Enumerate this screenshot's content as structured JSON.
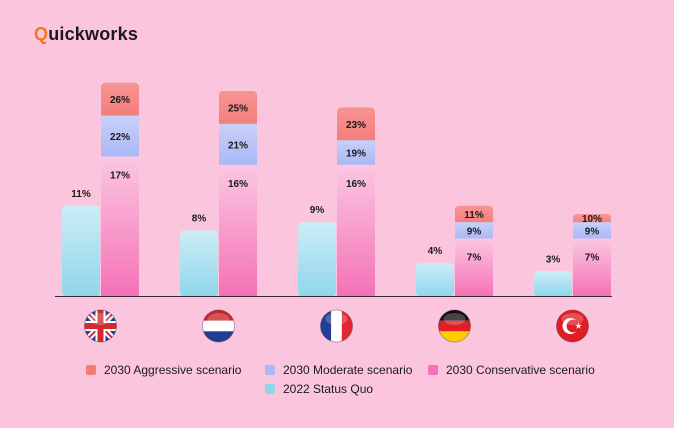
{
  "brand": {
    "prefix": "Q",
    "rest": "uickworks"
  },
  "colors": {
    "aggressive": "#f47b78",
    "moderate": "#aab8f5",
    "conservative": "#f472b6",
    "status_quo": "#8fd6ec",
    "background": "#fbc5de"
  },
  "chart_data": {
    "type": "bar",
    "stacked_series": [
      "2030 Conservative scenario",
      "2030 Moderate scenario",
      "2030 Aggressive scenario"
    ],
    "categories": [
      "United Kingdom",
      "Netherlands",
      "France",
      "Germany",
      "Turkey"
    ],
    "category_icons": [
      "uk-flag-icon",
      "netherlands-flag-icon",
      "france-flag-icon",
      "germany-flag-icon",
      "turkey-flag-icon"
    ],
    "series": [
      {
        "name": "2022 Status Quo",
        "values": [
          11,
          8,
          9,
          4,
          3
        ],
        "labels": [
          "11%",
          "8%",
          "9%",
          "4%",
          "3%"
        ]
      },
      {
        "name": "2030 Conservative scenario",
        "values": [
          17,
          16,
          16,
          7,
          7
        ],
        "labels": [
          "17%",
          "16%",
          "16%",
          "7%",
          "7%"
        ]
      },
      {
        "name": "2030 Moderate scenario",
        "values": [
          22,
          21,
          19,
          9,
          9
        ],
        "labels": [
          "22%",
          "21%",
          "19%",
          "9%",
          "9%"
        ]
      },
      {
        "name": "2030 Aggressive scenario",
        "values": [
          26,
          25,
          23,
          11,
          10
        ],
        "labels": [
          "26%",
          "25%",
          "23%",
          "11%",
          "10%"
        ]
      }
    ],
    "ylim": [
      0,
      28
    ],
    "grid": false,
    "legend_position": "bottom"
  },
  "legend": {
    "aggressive": "2030 Aggressive scenario",
    "moderate": "2030 Moderate scenario",
    "conservative": "2030 Conservative scenario",
    "status_quo": "2022 Status Quo"
  }
}
